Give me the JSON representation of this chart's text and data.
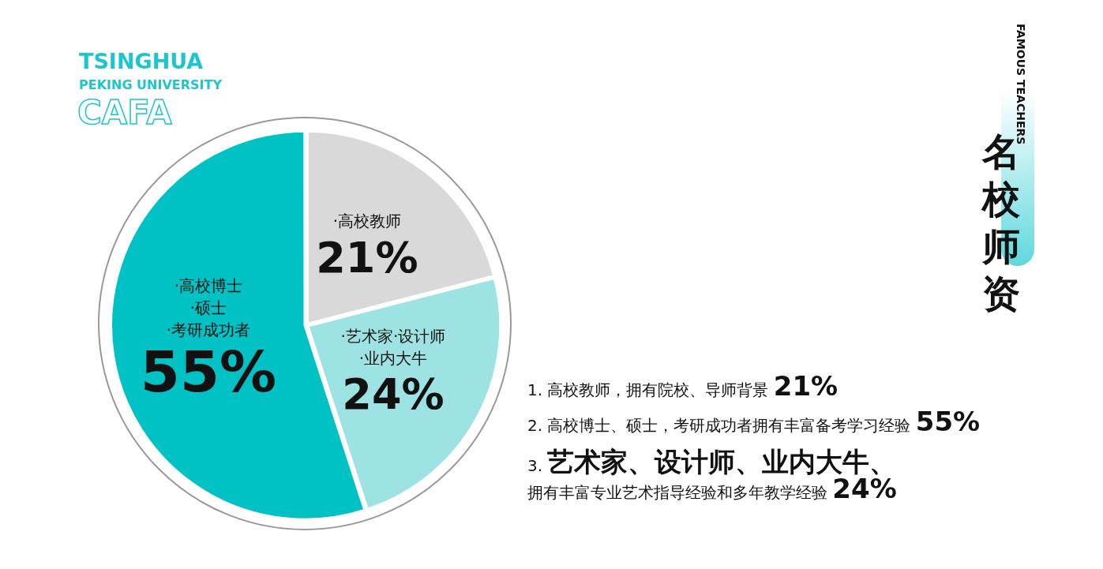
{
  "chart_data": {
    "type": "pie",
    "title": "名校师资",
    "subtitle": "FAMOUS TEACHERS",
    "categories": [
      "·高校教师",
      "·艺术家·设计师\n·业内大牛",
      "·高校博士\n·硕士\n·考研成功者"
    ],
    "values": [
      21,
      24,
      55
    ],
    "colors": [
      "#d9d9d9",
      "#9ee3e3",
      "#00c2c4"
    ],
    "value_labels": [
      "21%",
      "24%",
      "55%"
    ],
    "legend": false,
    "annotations": [
      "TSINGHUA",
      "PEKING UNIVERSITY",
      "CAFA",
      "1. 高校教师，拥有院校、导师背景 21%",
      "2. 高校博士、硕士，考研成功者拥有丰富备考学习经验 55%",
      "3. 艺术家、设计师、业内大牛、",
      "拥有丰富专业艺术指导经验和多年教学经验 24%"
    ]
  }
}
